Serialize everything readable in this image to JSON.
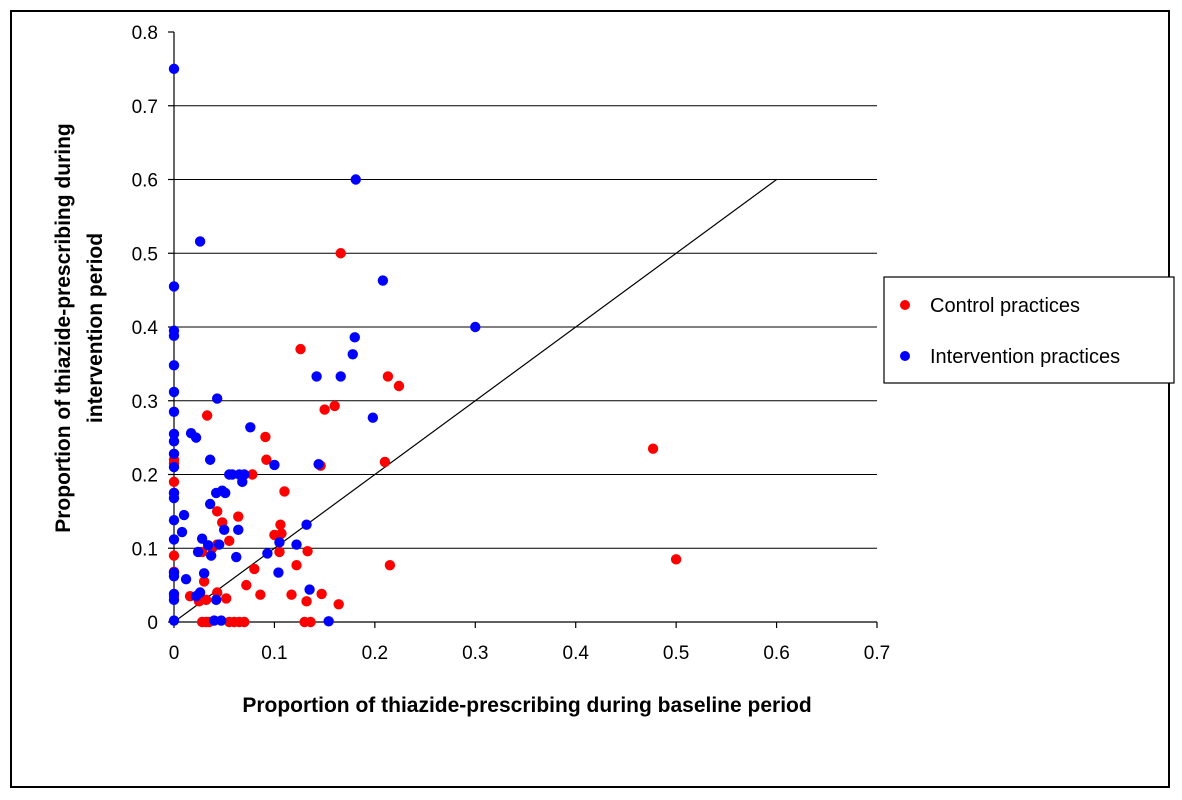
{
  "chart_data": {
    "type": "scatter",
    "xlabel": "Proportion of thiazide-prescribing during baseline period",
    "ylabel_lines": [
      "Proportion of thiazide-prescribing during",
      "intervention period"
    ],
    "xlim": [
      0,
      0.7
    ],
    "ylim": [
      0,
      0.8
    ],
    "x_ticks": [
      "0",
      "0.1",
      "0.2",
      "0.3",
      "0.4",
      "0.5",
      "0.6",
      "0.7"
    ],
    "y_ticks": [
      "0",
      "0.1",
      "0.2",
      "0.3",
      "0.4",
      "0.5",
      "0.6",
      "0.7",
      "0.8"
    ],
    "grid": "horizontal",
    "legend_position": "right",
    "reference_line": {
      "x": [
        0,
        0.6
      ],
      "y": [
        0,
        0.6
      ]
    },
    "series": [
      {
        "name": "Control practices",
        "color": "#ff0000",
        "points": [
          [
            0,
            0.215
          ],
          [
            0,
            0.19
          ],
          [
            0,
            0.175
          ],
          [
            0,
            0.22
          ],
          [
            0,
            0.09
          ],
          [
            0,
            0.068
          ],
          [
            0,
            0.035
          ],
          [
            0.016,
            0.035
          ],
          [
            0.025,
            0.028
          ],
          [
            0.028,
            0.095
          ],
          [
            0.03,
            0.055
          ],
          [
            0.032,
            0.03
          ],
          [
            0.033,
            0.28
          ],
          [
            0.028,
            0
          ],
          [
            0.032,
            0
          ],
          [
            0.035,
            0
          ],
          [
            0.038,
            0.1
          ],
          [
            0.043,
            0.105
          ],
          [
            0.043,
            0.04
          ],
          [
            0.043,
            0.15
          ],
          [
            0.048,
            0.135
          ],
          [
            0.052,
            0.032
          ],
          [
            0.055,
            0.11
          ],
          [
            0.055,
            0
          ],
          [
            0.06,
            0
          ],
          [
            0.064,
            0.143
          ],
          [
            0.065,
            0
          ],
          [
            0.07,
            0
          ],
          [
            0.072,
            0.05
          ],
          [
            0.078,
            0.2
          ],
          [
            0.08,
            0.072
          ],
          [
            0.086,
            0.037
          ],
          [
            0.091,
            0.251
          ],
          [
            0.092,
            0.22
          ],
          [
            0.1,
            0.118
          ],
          [
            0.105,
            0.095
          ],
          [
            0.106,
            0.132
          ],
          [
            0.107,
            0.12
          ],
          [
            0.11,
            0.177
          ],
          [
            0.117,
            0.037
          ],
          [
            0.122,
            0.077
          ],
          [
            0.126,
            0.37
          ],
          [
            0.13,
            0
          ],
          [
            0.132,
            0.028
          ],
          [
            0.133,
            0.096
          ],
          [
            0.136,
            0
          ],
          [
            0.146,
            0.212
          ],
          [
            0.147,
            0.038
          ],
          [
            0.15,
            0.288
          ],
          [
            0.16,
            0.293
          ],
          [
            0.164,
            0.024
          ],
          [
            0.166,
            0.5
          ],
          [
            0.21,
            0.217
          ],
          [
            0.213,
            0.333
          ],
          [
            0.215,
            0.077
          ],
          [
            0.224,
            0.32
          ],
          [
            0.477,
            0.235
          ],
          [
            0.5,
            0.085
          ]
        ]
      },
      {
        "name": "Intervention practices",
        "color": "#0000ff",
        "points": [
          [
            0,
            0.75
          ],
          [
            0,
            0.455
          ],
          [
            0,
            0.395
          ],
          [
            0,
            0.388
          ],
          [
            0,
            0.348
          ],
          [
            0,
            0.312
          ],
          [
            0,
            0.285
          ],
          [
            0,
            0.255
          ],
          [
            0,
            0.245
          ],
          [
            0,
            0.228
          ],
          [
            0,
            0.21
          ],
          [
            0,
            0.175
          ],
          [
            0,
            0.168
          ],
          [
            0,
            0.138
          ],
          [
            0,
            0.112
          ],
          [
            0,
            0.067
          ],
          [
            0,
            0.062
          ],
          [
            0,
            0.038
          ],
          [
            0,
            0.03
          ],
          [
            0,
            0.002
          ],
          [
            0.008,
            0.122
          ],
          [
            0.01,
            0.145
          ],
          [
            0.012,
            0.058
          ],
          [
            0.017,
            0.256
          ],
          [
            0.022,
            0.25
          ],
          [
            0.022,
            0.035
          ],
          [
            0.024,
            0.095
          ],
          [
            0.026,
            0.04
          ],
          [
            0.026,
            0.516
          ],
          [
            0.028,
            0.113
          ],
          [
            0.03,
            0.066
          ],
          [
            0.034,
            0.104
          ],
          [
            0.036,
            0.16
          ],
          [
            0.036,
            0.22
          ],
          [
            0.037,
            0.09
          ],
          [
            0.04,
            0.002
          ],
          [
            0.042,
            0.03
          ],
          [
            0.042,
            0.175
          ],
          [
            0.043,
            0.303
          ],
          [
            0.045,
            0.105
          ],
          [
            0.047,
            0.002
          ],
          [
            0.048,
            0.178
          ],
          [
            0.05,
            0.125
          ],
          [
            0.051,
            0.175
          ],
          [
            0.055,
            0.2
          ],
          [
            0.058,
            0.2
          ],
          [
            0.062,
            0.088
          ],
          [
            0.064,
            0.125
          ],
          [
            0.065,
            0.2
          ],
          [
            0.068,
            0.19
          ],
          [
            0.07,
            0.2
          ],
          [
            0.076,
            0.264
          ],
          [
            0.093,
            0.093
          ],
          [
            0.1,
            0.213
          ],
          [
            0.104,
            0.067
          ],
          [
            0.105,
            0.108
          ],
          [
            0.122,
            0.105
          ],
          [
            0.132,
            0.132
          ],
          [
            0.135,
            0.044
          ],
          [
            0.142,
            0.333
          ],
          [
            0.144,
            0.214
          ],
          [
            0.154,
            0.001
          ],
          [
            0.166,
            0.333
          ],
          [
            0.178,
            0.363
          ],
          [
            0.18,
            0.386
          ],
          [
            0.181,
            0.6
          ],
          [
            0.198,
            0.277
          ],
          [
            0.208,
            0.463
          ],
          [
            0.3,
            0.4
          ]
        ]
      }
    ]
  }
}
